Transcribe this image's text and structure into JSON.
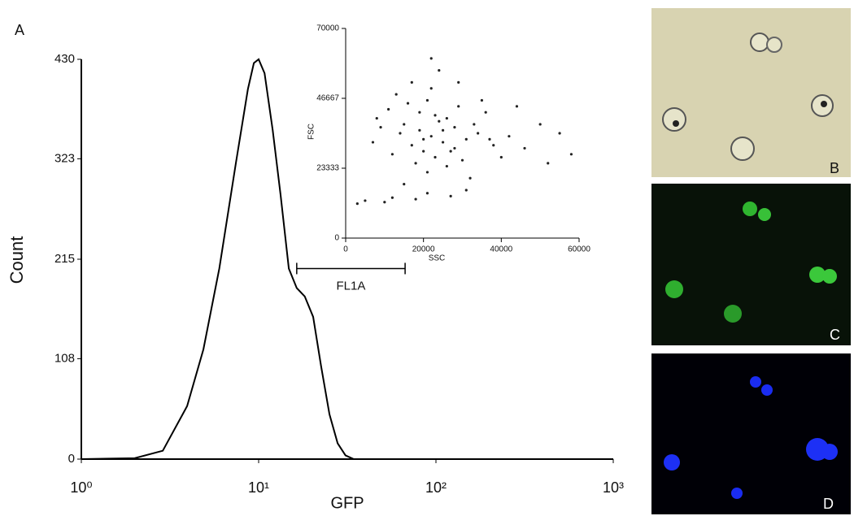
{
  "chart_data": [
    {
      "type": "line",
      "panel_label": "A",
      "x_label": "GFP",
      "y_label": "Count",
      "xscale": "log",
      "color": "#000000",
      "x": [
        1,
        2,
        2.88,
        3.95,
        4.88,
        6.0,
        7.45,
        8.7,
        9.4,
        10,
        10.8,
        12,
        13.3,
        14.8,
        16.4,
        18.2,
        20.3,
        22.5,
        25.1,
        27.9,
        30.9,
        34.4,
        40,
        1000
      ],
      "values": [
        0,
        1,
        9,
        57,
        118,
        205,
        319,
        398,
        426,
        430,
        415,
        354,
        284,
        205,
        184,
        175,
        153,
        100,
        48,
        17,
        4,
        0,
        0,
        0
      ],
      "xlim": [
        1,
        1000
      ],
      "xticks": [
        {
          "value": 1,
          "label": "10⁰"
        },
        {
          "value": 10,
          "label": "10¹"
        },
        {
          "value": 100,
          "label": "10²"
        },
        {
          "value": 1000,
          "label": "10³"
        }
      ],
      "ylim": [
        0,
        430
      ],
      "yticks": [
        0,
        108,
        215,
        323,
        430
      ],
      "annotations": [
        {
          "text": "FL1A",
          "x": [
            16.4,
            67
          ],
          "y": 205
        }
      ]
    },
    {
      "type": "scatter",
      "x_label": "SSC",
      "y_label": "FSC",
      "color": "#222222",
      "x": [
        22000,
        15000,
        28000,
        19000,
        25000,
        31000,
        12000,
        21000,
        17000,
        26000,
        34000,
        9000,
        23000,
        20000,
        29000,
        14000,
        38000,
        24000,
        18000,
        27000,
        11000,
        33000,
        22000,
        16000,
        30000,
        42000,
        7000,
        25000,
        19000,
        36000,
        13000,
        21000,
        46000,
        28000,
        23000,
        10000,
        32000,
        17000,
        26000,
        20000,
        50000,
        5000,
        35000,
        24000,
        15000,
        40000,
        22000,
        27000,
        18000,
        55000,
        8000,
        31000,
        44000,
        3000,
        29000,
        52000,
        12000,
        37000,
        21000,
        58000
      ],
      "values": [
        34000,
        38000,
        30000,
        42000,
        36000,
        33000,
        28000,
        46000,
        31000,
        40000,
        35000,
        37000,
        27000,
        33000,
        44000,
        35000,
        31000,
        39000,
        25000,
        29000,
        43000,
        38000,
        50000,
        45000,
        26000,
        34000,
        32000,
        32000,
        36000,
        42000,
        48000,
        22000,
        30000,
        37000,
        41000,
        12000,
        20000,
        52000,
        24000,
        29000,
        38000,
        12500,
        46000,
        56000,
        18000,
        27000,
        60000,
        14000,
        13000,
        35000,
        40000,
        16000,
        44000,
        11500,
        52000,
        25000,
        13500,
        33000,
        15000,
        28000
      ],
      "xlim": [
        0,
        60000
      ],
      "xticks": [
        0,
        20000,
        40000,
        60000
      ],
      "ylim": [
        0,
        70000
      ],
      "yticks": [
        0,
        23333,
        46667,
        70000
      ]
    }
  ],
  "images": [
    {
      "label": "B"
    },
    {
      "label": "C"
    },
    {
      "label": "D"
    }
  ]
}
